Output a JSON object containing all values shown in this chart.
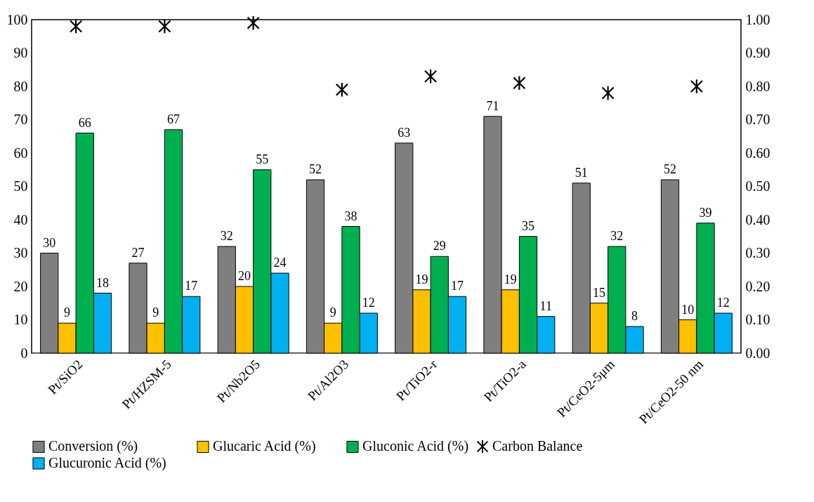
{
  "chart_data": {
    "type": "bar",
    "categories": [
      "Pt/SiO2",
      "Pt/HZSM-5",
      "Pt/Nb2O5",
      "Pt/Al2O3",
      "Pt/TiO2-r",
      "Pt/TiO2-a",
      "Pt/CeO2-5μm",
      "Pt/CeO2-50 nm"
    ],
    "series": [
      {
        "name": "Conversion (%)",
        "color": "#7f7f7f",
        "values": [
          30,
          27,
          32,
          52,
          63,
          71,
          51,
          52
        ],
        "value_labels": [
          "30",
          "27",
          "32",
          "52",
          "63",
          "71",
          "51",
          "52"
        ]
      },
      {
        "name": "Glucaric Acid (%)",
        "color": "#ffc000",
        "values": [
          9,
          9,
          20,
          9,
          19,
          19,
          15,
          10
        ],
        "value_labels": [
          "9",
          "9",
          "20",
          "9",
          "19",
          "19",
          "15",
          "10"
        ]
      },
      {
        "name": "Gluconic Acid (%)",
        "color": "#00b050",
        "values": [
          66,
          67,
          55,
          38,
          29,
          35,
          32,
          39
        ],
        "value_labels": [
          "66",
          "67",
          "55",
          "38",
          "29",
          "35",
          "32",
          "39"
        ]
      },
      {
        "name": "Glucuronic Acid (%)",
        "color": "#00b0f0",
        "values": [
          18,
          17,
          24,
          12,
          17,
          11,
          8,
          12
        ],
        "value_labels": [
          "18",
          "17",
          "24",
          "12",
          "17",
          "11",
          "8",
          "12"
        ]
      },
      {
        "name": "Carbon Balance",
        "type": "scatter",
        "axis": "y2",
        "color": "#000000",
        "marker": "cross",
        "values": [
          0.98,
          0.98,
          0.99,
          0.79,
          0.83,
          0.81,
          0.78,
          0.8
        ]
      }
    ],
    "ylim": [
      0,
      100
    ],
    "yticks": [
      0,
      10,
      20,
      30,
      40,
      50,
      60,
      70,
      80,
      90,
      100
    ],
    "y2lim": [
      0,
      1
    ],
    "y2ticks": [
      {
        "value": 0,
        "label": "0.00"
      },
      {
        "value": 0.1,
        "label": "0.10"
      },
      {
        "value": 0.2,
        "label": "0.20"
      },
      {
        "value": 0.3,
        "label": "0.30"
      },
      {
        "value": 0.4,
        "label": "0.40"
      },
      {
        "value": 0.5,
        "label": "0.50"
      },
      {
        "value": 0.6,
        "label": "0.60"
      },
      {
        "value": 0.7,
        "label": "0.70"
      },
      {
        "value": 0.8,
        "label": "0.80"
      },
      {
        "value": 0.9,
        "label": "0.90"
      },
      {
        "value": 1,
        "label": "1.00"
      }
    ],
    "grid": false,
    "legend": "bottom"
  }
}
